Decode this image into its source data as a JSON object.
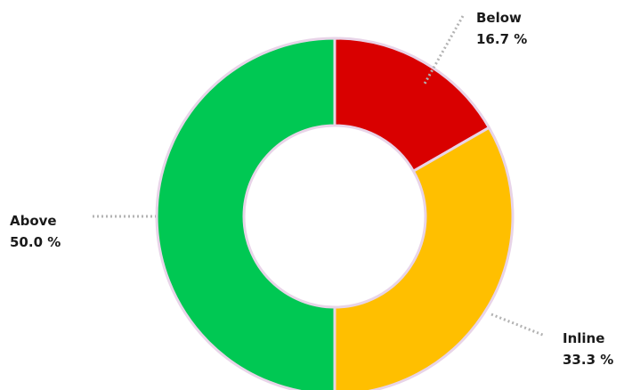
{
  "chart_data": {
    "type": "pie",
    "variant": "donut",
    "categories": [
      "Below",
      "Inline",
      "Above"
    ],
    "values": [
      16.7,
      33.3,
      50.0
    ],
    "value_labels": [
      "16.7 %",
      "33.3 %",
      "50.0 %"
    ],
    "colors": [
      "#d90000",
      "#ffbf00",
      "#00c853"
    ],
    "border_color": "#e8d4e8",
    "start_angle_deg": 0,
    "direction": "clockwise",
    "legend": "none",
    "labels": "outside, with dotted leader lines"
  }
}
